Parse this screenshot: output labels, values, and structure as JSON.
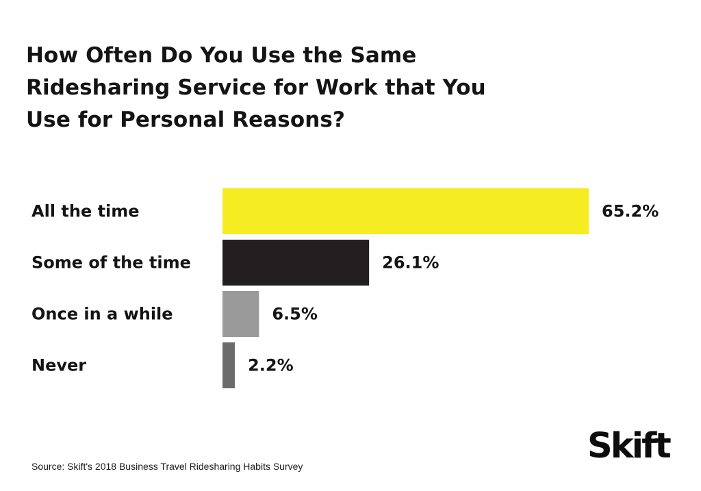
{
  "chart_data": {
    "type": "bar",
    "orientation": "horizontal",
    "title": "How Often Do You Use the Same Ridesharing Service for Work that You Use for Personal Reasons?",
    "categories": [
      "All the time",
      "Some of the time",
      "Once in a while",
      "Never"
    ],
    "values": [
      65.2,
      26.1,
      6.5,
      2.2
    ],
    "value_labels": [
      "65.2%",
      "26.1%",
      "6.5%",
      "2.2%"
    ],
    "colors": [
      "#f5ec22",
      "#231f20",
      "#9a9a9a",
      "#6b6b6b"
    ],
    "xlabel": "",
    "ylabel": "",
    "xlim": [
      0,
      65.2
    ],
    "grid": false,
    "legend": "none"
  },
  "footer": {
    "source": "Source: Skift's 2018 Business Travel Ridesharing Habits Survey",
    "logo": "Skift"
  }
}
